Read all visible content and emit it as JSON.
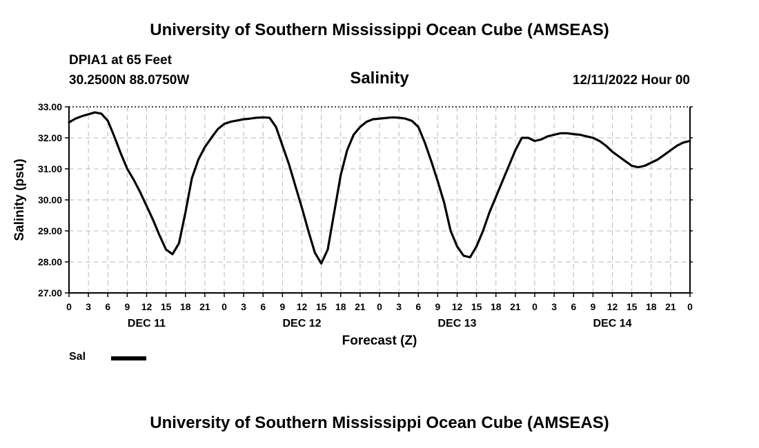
{
  "page": {
    "title_top": "University of Southern Mississippi Ocean Cube (AMSEAS)",
    "title_bottom": "University of Southern Mississippi Ocean Cube (AMSEAS)",
    "station": "DPIA1 at 65 Feet",
    "coords": "30.2500N  88.0750W",
    "variable": "Salinity",
    "datetime": "12/11/2022 Hour 00"
  },
  "chart_data": {
    "type": "line",
    "title": "Salinity",
    "xlabel": "Forecast (Z)",
    "ylabel": "Salinity (psu)",
    "x_unit": "hours from 12/11/2022 00Z",
    "xlim": [
      0,
      96
    ],
    "ylim": [
      27,
      33
    ],
    "grid": true,
    "yticks": [
      {
        "value": 27,
        "label": "27.00"
      },
      {
        "value": 28,
        "label": "28.00"
      },
      {
        "value": 29,
        "label": "29.00"
      },
      {
        "value": 30,
        "label": "30.00"
      },
      {
        "value": 31,
        "label": "31.00"
      },
      {
        "value": 32,
        "label": "32.00"
      },
      {
        "value": 33,
        "label": "33.00"
      }
    ],
    "xticks": [
      {
        "value": 0,
        "label": "0"
      },
      {
        "value": 3,
        "label": "3"
      },
      {
        "value": 6,
        "label": "6"
      },
      {
        "value": 9,
        "label": "9"
      },
      {
        "value": 12,
        "label": "12"
      },
      {
        "value": 15,
        "label": "15"
      },
      {
        "value": 18,
        "label": "18"
      },
      {
        "value": 21,
        "label": "21"
      },
      {
        "value": 24,
        "label": "0"
      },
      {
        "value": 27,
        "label": "3"
      },
      {
        "value": 30,
        "label": "6"
      },
      {
        "value": 33,
        "label": "9"
      },
      {
        "value": 36,
        "label": "12"
      },
      {
        "value": 39,
        "label": "15"
      },
      {
        "value": 42,
        "label": "18"
      },
      {
        "value": 45,
        "label": "21"
      },
      {
        "value": 48,
        "label": "0"
      },
      {
        "value": 51,
        "label": "3"
      },
      {
        "value": 54,
        "label": "6"
      },
      {
        "value": 57,
        "label": "9"
      },
      {
        "value": 60,
        "label": "12"
      },
      {
        "value": 63,
        "label": "15"
      },
      {
        "value": 66,
        "label": "18"
      },
      {
        "value": 69,
        "label": "21"
      },
      {
        "value": 72,
        "label": "0"
      },
      {
        "value": 75,
        "label": "3"
      },
      {
        "value": 78,
        "label": "6"
      },
      {
        "value": 81,
        "label": "9"
      },
      {
        "value": 84,
        "label": "12"
      },
      {
        "value": 87,
        "label": "15"
      },
      {
        "value": 90,
        "label": "18"
      },
      {
        "value": 93,
        "label": "21"
      },
      {
        "value": 96,
        "label": "0"
      }
    ],
    "day_labels": [
      {
        "value": 12,
        "label": "DEC 11"
      },
      {
        "value": 36,
        "label": "DEC 12"
      },
      {
        "value": 60,
        "label": "DEC 13"
      },
      {
        "value": 84,
        "label": "DEC 14"
      }
    ],
    "series": [
      {
        "name": "Sal",
        "x": [
          0,
          1,
          2,
          3,
          4,
          5,
          6,
          7,
          8,
          9,
          10,
          11,
          12,
          13,
          14,
          15,
          16,
          17,
          18,
          19,
          20,
          21,
          22,
          23,
          24,
          25,
          26,
          27,
          28,
          29,
          30,
          31,
          32,
          33,
          34,
          35,
          36,
          37,
          38,
          39,
          40,
          41,
          42,
          43,
          44,
          45,
          46,
          47,
          48,
          49,
          50,
          51,
          52,
          53,
          54,
          55,
          56,
          57,
          58,
          59,
          60,
          61,
          62,
          63,
          64,
          65,
          66,
          67,
          68,
          69,
          70,
          71,
          72,
          73,
          74,
          75,
          76,
          77,
          78,
          79,
          80,
          81,
          82,
          83,
          84,
          85,
          86,
          87,
          88,
          89,
          90,
          91,
          92,
          93,
          94,
          95,
          96
        ],
        "values": [
          32.5,
          32.62,
          32.7,
          32.76,
          32.82,
          32.78,
          32.55,
          32.05,
          31.5,
          31.0,
          30.65,
          30.25,
          29.8,
          29.35,
          28.85,
          28.4,
          28.25,
          28.6,
          29.6,
          30.7,
          31.3,
          31.7,
          32.0,
          32.28,
          32.45,
          32.52,
          32.56,
          32.6,
          32.62,
          32.65,
          32.66,
          32.65,
          32.35,
          31.75,
          31.15,
          30.45,
          29.75,
          29.0,
          28.3,
          27.95,
          28.4,
          29.6,
          30.8,
          31.6,
          32.1,
          32.35,
          32.52,
          32.6,
          32.62,
          32.64,
          32.66,
          32.65,
          32.62,
          32.55,
          32.35,
          31.85,
          31.25,
          30.6,
          29.9,
          29.0,
          28.5,
          28.2,
          28.15,
          28.5,
          29.0,
          29.6,
          30.1,
          30.6,
          31.1,
          31.6,
          32.0,
          32.0,
          31.9,
          31.95,
          32.05,
          32.1,
          32.15,
          32.15,
          32.12,
          32.1,
          32.05,
          32.0,
          31.9,
          31.75,
          31.55,
          31.4,
          31.25,
          31.1,
          31.05,
          31.1,
          31.2,
          31.3,
          31.45,
          31.6,
          31.75,
          31.85,
          31.9
        ]
      }
    ],
    "legend": [
      {
        "label": "Sal",
        "position": "bottom-left"
      }
    ]
  }
}
